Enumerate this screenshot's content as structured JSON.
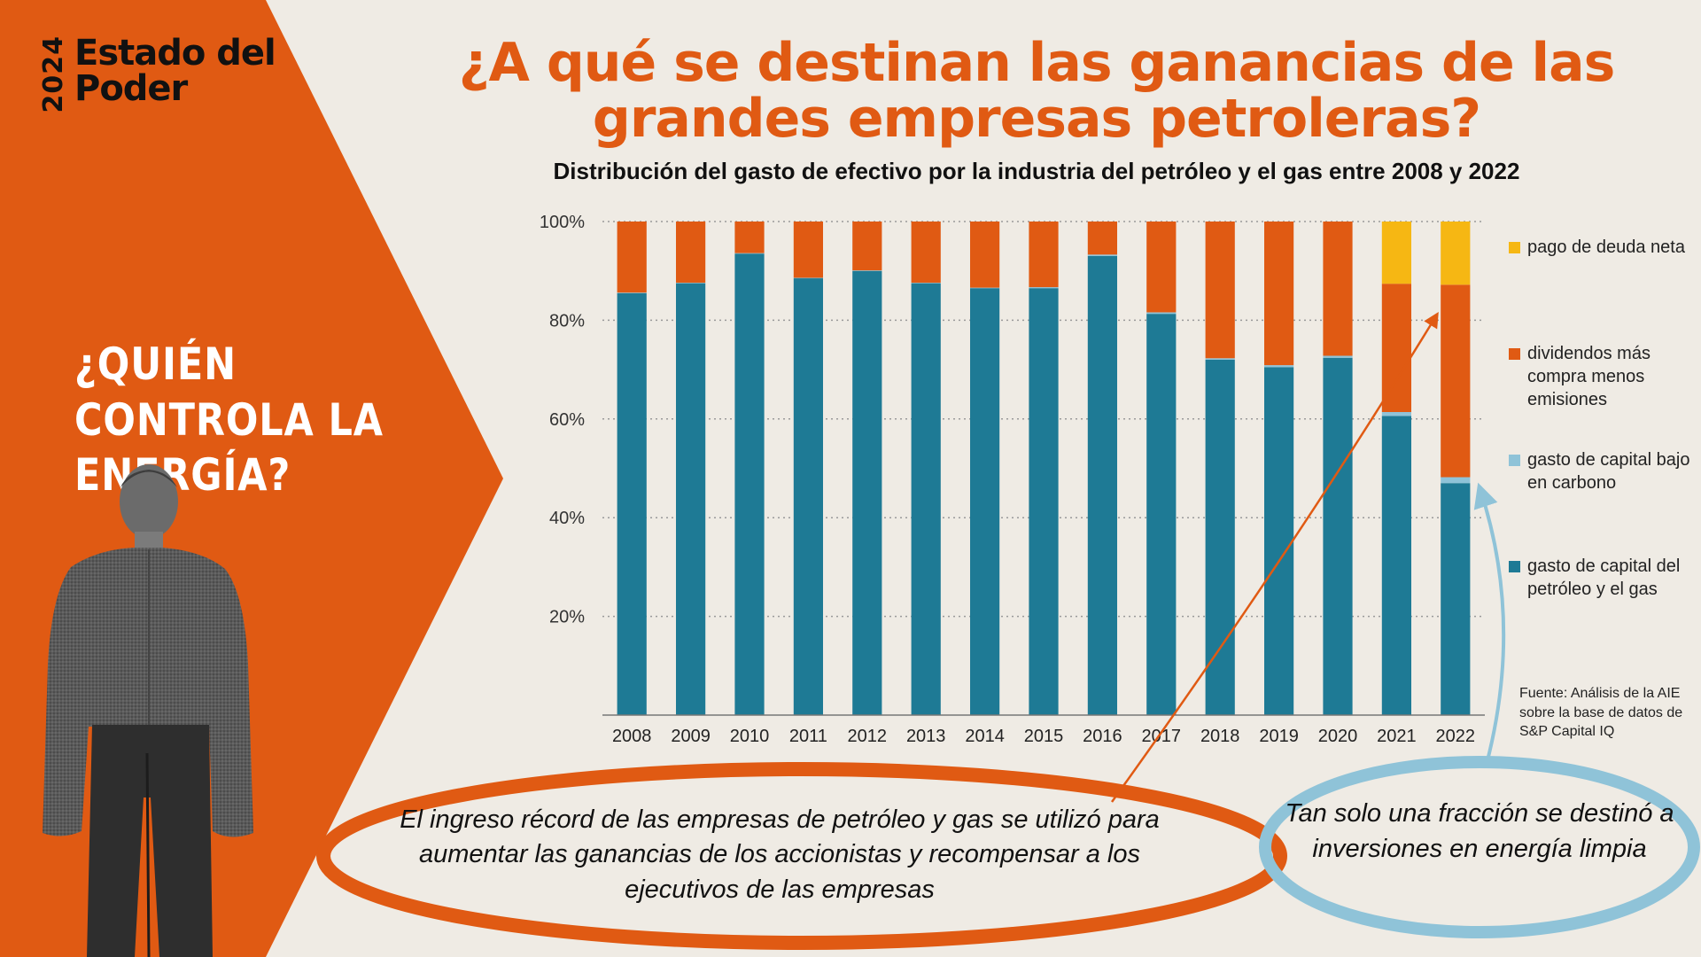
{
  "brand": {
    "year": "2024",
    "line1": "Estado del",
    "line2": "Poder"
  },
  "side_question": "¿QUIÉN CONTROLA LA ENERGÍA?",
  "title": "¿A qué se destinan las ganancias de las grandes empresas petroleras?",
  "subtitle": "Distribución del gasto de efectivo por la industria del petróleo y el gas entre 2008 y 2022",
  "colors": {
    "orange": "#e05a13",
    "teal": "#1e7a95",
    "light_blue": "#8fc3d8",
    "yellow": "#f6b713",
    "background": "#efebe4"
  },
  "legend": [
    {
      "label": "pago de deuda neta",
      "color": "#f6b713"
    },
    {
      "label": "dividendos más compra menos emisiones",
      "color": "#e05a13"
    },
    {
      "label": "gasto de capital bajo en carbono",
      "color": "#8fc3d8"
    },
    {
      "label": "gasto de capital del petróleo y el gas",
      "color": "#1e7a95"
    }
  ],
  "source": "Fuente: Análisis de la AIE sobre la base de datos de S&P Capital IQ",
  "callout_left": "El ingreso récord de las empresas de petróleo y gas se utilizó para aumentar las ganancias de los accionistas y recompensar a los ejecutivos de las empresas",
  "callout_right": "Tan solo una fracción se destinó a inversiones en energía limpia",
  "chart_data": {
    "type": "bar",
    "stacked": true,
    "categories": [
      "2008",
      "2009",
      "2010",
      "2011",
      "2012",
      "2013",
      "2014",
      "2015",
      "2016",
      "2017",
      "2018",
      "2019",
      "2020",
      "2021",
      "2022"
    ],
    "ylim": [
      0,
      100
    ],
    "ytick_labels": [
      "20%",
      "40%",
      "60%",
      "80%",
      "100%"
    ],
    "yticks": [
      20,
      40,
      60,
      80,
      100
    ],
    "grid": true,
    "series": [
      {
        "name": "gasto de capital del petróleo y el gas",
        "color": "#1e7a95",
        "values": [
          85.5,
          87.5,
          93.5,
          88.5,
          90,
          87.5,
          86.5,
          86.5,
          93,
          81.3,
          72,
          70.5,
          72.4,
          60.6,
          47
        ]
      },
      {
        "name": "gasto de capital bajo en carbono",
        "color": "#8fc3d8",
        "values": [
          0.1,
          0.1,
          0.1,
          0.1,
          0.1,
          0.1,
          0.1,
          0.2,
          0.3,
          0.3,
          0.3,
          0.4,
          0.4,
          0.8,
          1.2
        ]
      },
      {
        "name": "dividendos más compra menos emisiones",
        "color": "#e05a13",
        "values": [
          14.4,
          12.4,
          6.4,
          11.4,
          9.9,
          12.4,
          13.4,
          13.3,
          6.7,
          18.4,
          27.7,
          29.1,
          27.2,
          26,
          39
        ]
      },
      {
        "name": "pago de deuda neta",
        "color": "#f6b713",
        "values": [
          0,
          0,
          0,
          0,
          0,
          0,
          0,
          0,
          0,
          0,
          0,
          0,
          0,
          12.6,
          12.8
        ]
      }
    ]
  }
}
